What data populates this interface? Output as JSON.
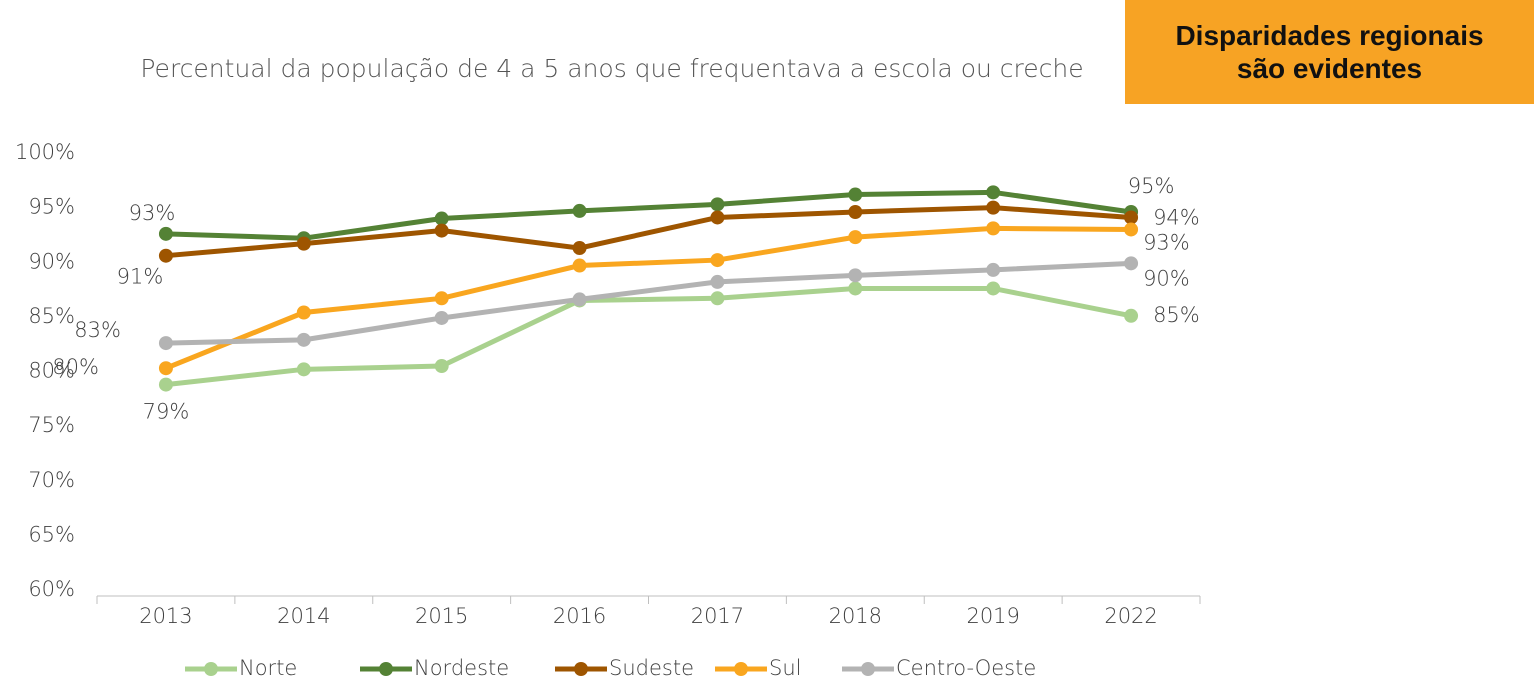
{
  "chart_data": {
    "type": "line",
    "title": "Percentual da população de 4 a 5 anos que frequentava a escola ou creche",
    "annotation": "Disparidades regionais são evidentes",
    "categories": [
      "2013",
      "2014",
      "2015",
      "2016",
      "2017",
      "2018",
      "2019",
      "2022"
    ],
    "series": [
      {
        "name": "Norte",
        "color": "#a9d18e",
        "values": [
          78.8,
          80.2,
          80.5,
          86.5,
          86.7,
          87.6,
          87.6,
          85.1
        ],
        "value_labels": [
          "79%",
          null,
          null,
          null,
          null,
          null,
          null,
          "85%"
        ]
      },
      {
        "name": "Nordeste",
        "color": "#548235",
        "values": [
          92.6,
          92.2,
          94.0,
          94.7,
          95.3,
          96.2,
          96.4,
          94.6
        ],
        "value_labels": [
          "93%",
          null,
          null,
          null,
          null,
          null,
          null,
          "95%"
        ]
      },
      {
        "name": "Sudeste",
        "color": "#9e5500",
        "values": [
          90.6,
          91.7,
          92.9,
          91.3,
          94.1,
          94.6,
          95.0,
          94.1
        ],
        "value_labels": [
          "91%",
          null,
          null,
          null,
          null,
          null,
          null,
          "94%"
        ]
      },
      {
        "name": "Sul",
        "color": "#f9a61f",
        "values": [
          80.3,
          85.4,
          86.7,
          89.7,
          90.2,
          92.3,
          93.1,
          93.0
        ],
        "value_labels": [
          "80%",
          null,
          null,
          null,
          null,
          null,
          null,
          "93%"
        ]
      },
      {
        "name": "Centro-Oeste",
        "color": "#b3b3b3",
        "values": [
          82.6,
          82.9,
          84.9,
          86.6,
          88.2,
          88.8,
          89.3,
          89.9
        ],
        "value_labels": [
          "83%",
          null,
          null,
          null,
          null,
          null,
          null,
          "90%"
        ]
      }
    ],
    "ylim": [
      60,
      100
    ],
    "yticks": [
      {
        "value": 60,
        "label": "60%"
      },
      {
        "value": 65,
        "label": "65%"
      },
      {
        "value": 70,
        "label": "70%"
      },
      {
        "value": 75,
        "label": "75%"
      },
      {
        "value": 80,
        "label": "80%"
      },
      {
        "value": 85,
        "label": "85%"
      },
      {
        "value": 90,
        "label": "90%"
      },
      {
        "value": 95,
        "label": "95%"
      },
      {
        "value": 100,
        "label": "100%"
      }
    ],
    "grid": false,
    "legend": "bottom"
  }
}
